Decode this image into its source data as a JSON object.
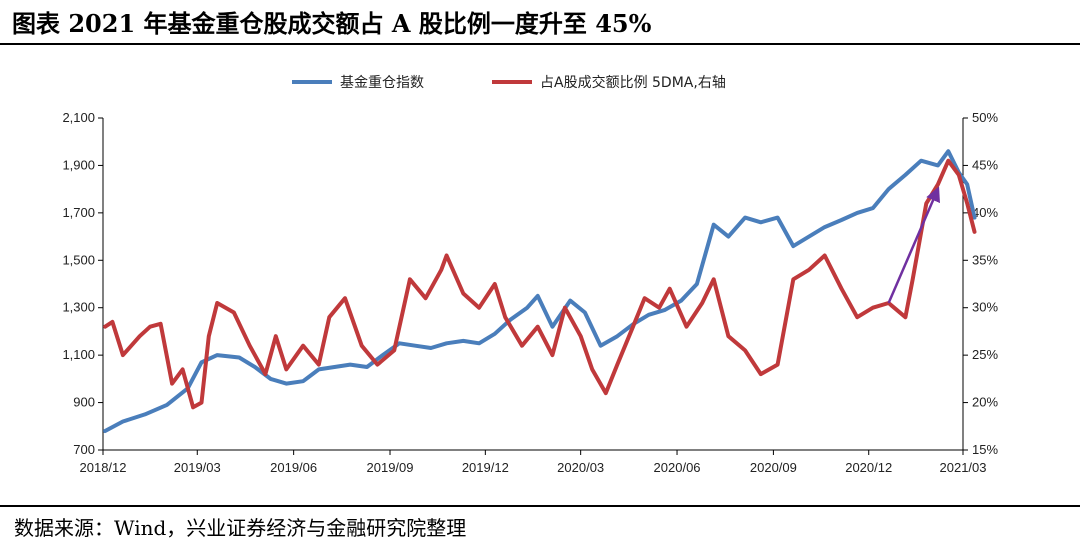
{
  "title": "图表  2021 年基金重仓股成交额占 A 股比例一度升至 45%",
  "source": "数据来源：Wind，兴业证券经济与金融研究院整理",
  "colors": {
    "fund_index": "#4a7ebb",
    "share_ratio": "#c0393b",
    "annotation_arrow": "#7030a0"
  },
  "chart_data": {
    "type": "line",
    "x_ticks": [
      "2018/12",
      "2019/03",
      "2019/06",
      "2019/09",
      "2019/12",
      "2020/03",
      "2020/06",
      "2020/09",
      "2020/12",
      "2021/03"
    ],
    "y_left": {
      "ticks": [
        "2,100",
        "1,900",
        "1,700",
        "1,500",
        "1,300",
        "1,100",
        "900",
        "700"
      ],
      "range": [
        700,
        2100
      ]
    },
    "y_right": {
      "ticks": [
        "50%",
        "45%",
        "40%",
        "35%",
        "30%",
        "25%",
        "20%",
        "15%"
      ],
      "range": [
        15,
        50
      ]
    },
    "legend_position": "top-center",
    "series": [
      {
        "name": "基金重仓指数",
        "axis": "left",
        "points": [
          [
            "2018/12/03",
            780
          ],
          [
            "2018/12/20",
            820
          ],
          [
            "2019/01/10",
            850
          ],
          [
            "2019/01/31",
            890
          ],
          [
            "2019/02/20",
            960
          ],
          [
            "2019/03/05",
            1070
          ],
          [
            "2019/03/20",
            1100
          ],
          [
            "2019/04/10",
            1090
          ],
          [
            "2019/04/25",
            1050
          ],
          [
            "2019/05/10",
            1000
          ],
          [
            "2019/05/25",
            980
          ],
          [
            "2019/06/10",
            990
          ],
          [
            "2019/06/25",
            1040
          ],
          [
            "2019/07/10",
            1050
          ],
          [
            "2019/07/25",
            1060
          ],
          [
            "2019/08/10",
            1050
          ],
          [
            "2019/08/25",
            1100
          ],
          [
            "2019/09/10",
            1150
          ],
          [
            "2019/09/25",
            1140
          ],
          [
            "2019/10/10",
            1130
          ],
          [
            "2019/10/25",
            1150
          ],
          [
            "2019/11/10",
            1160
          ],
          [
            "2019/11/25",
            1150
          ],
          [
            "2019/12/10",
            1190
          ],
          [
            "2019/12/25",
            1250
          ],
          [
            "2020/01/10",
            1300
          ],
          [
            "2020/01/20",
            1350
          ],
          [
            "2020/02/03",
            1220
          ],
          [
            "2020/02/20",
            1330
          ],
          [
            "2020/03/05",
            1280
          ],
          [
            "2020/03/20",
            1140
          ],
          [
            "2020/04/05",
            1180
          ],
          [
            "2020/04/20",
            1230
          ],
          [
            "2020/05/05",
            1270
          ],
          [
            "2020/05/20",
            1290
          ],
          [
            "2020/06/05",
            1330
          ],
          [
            "2020/06/20",
            1400
          ],
          [
            "2020/07/06",
            1650
          ],
          [
            "2020/07/20",
            1600
          ],
          [
            "2020/08/05",
            1680
          ],
          [
            "2020/08/20",
            1660
          ],
          [
            "2020/09/05",
            1680
          ],
          [
            "2020/09/20",
            1560
          ],
          [
            "2020/10/05",
            1600
          ],
          [
            "2020/10/20",
            1640
          ],
          [
            "2020/11/05",
            1670
          ],
          [
            "2020/11/20",
            1700
          ],
          [
            "2020/12/05",
            1720
          ],
          [
            "2020/12/20",
            1800
          ],
          [
            "2021/01/05",
            1860
          ],
          [
            "2021/01/20",
            1920
          ],
          [
            "2021/02/05",
            1900
          ],
          [
            "2021/02/15",
            1960
          ],
          [
            "2021/02/25",
            1870
          ],
          [
            "2021/03/05",
            1820
          ],
          [
            "2021/03/12",
            1680
          ]
        ]
      },
      {
        "name": "占A股成交额比例 5DMA,右轴",
        "axis": "right",
        "points": [
          [
            "2018/12/03",
            28
          ],
          [
            "2018/12/10",
            28.5
          ],
          [
            "2018/12/20",
            25
          ],
          [
            "2019/01/05",
            27
          ],
          [
            "2019/01/15",
            28
          ],
          [
            "2019/01/25",
            28.3
          ],
          [
            "2019/02/05",
            22
          ],
          [
            "2019/02/15",
            23.5
          ],
          [
            "2019/02/25",
            19.5
          ],
          [
            "2019/03/05",
            20
          ],
          [
            "2019/03/12",
            27
          ],
          [
            "2019/03/20",
            30.5
          ],
          [
            "2019/04/05",
            29.5
          ],
          [
            "2019/04/20",
            26
          ],
          [
            "2019/05/05",
            23
          ],
          [
            "2019/05/15",
            27
          ],
          [
            "2019/05/25",
            23.5
          ],
          [
            "2019/06/10",
            26
          ],
          [
            "2019/06/25",
            24
          ],
          [
            "2019/07/05",
            29
          ],
          [
            "2019/07/20",
            31
          ],
          [
            "2019/08/05",
            26
          ],
          [
            "2019/08/20",
            24
          ],
          [
            "2019/09/05",
            25.5
          ],
          [
            "2019/09/20",
            33
          ],
          [
            "2019/10/05",
            31
          ],
          [
            "2019/10/20",
            34
          ],
          [
            "2019/10/25",
            35.5
          ],
          [
            "2019/11/10",
            31.5
          ],
          [
            "2019/11/25",
            30
          ],
          [
            "2019/12/10",
            32.5
          ],
          [
            "2019/12/20",
            29
          ],
          [
            "2020/01/05",
            26
          ],
          [
            "2020/01/20",
            28
          ],
          [
            "2020/02/03",
            25
          ],
          [
            "2020/02/15",
            30
          ],
          [
            "2020/03/01",
            27
          ],
          [
            "2020/03/12",
            23.5
          ],
          [
            "2020/03/25",
            21
          ],
          [
            "2020/04/05",
            24
          ],
          [
            "2020/04/20",
            28
          ],
          [
            "2020/05/01",
            31
          ],
          [
            "2020/05/15",
            30
          ],
          [
            "2020/05/25",
            32
          ],
          [
            "2020/06/10",
            28
          ],
          [
            "2020/06/25",
            30.5
          ],
          [
            "2020/07/06",
            33
          ],
          [
            "2020/07/20",
            27
          ],
          [
            "2020/08/05",
            25.5
          ],
          [
            "2020/08/20",
            23
          ],
          [
            "2020/09/05",
            24
          ],
          [
            "2020/09/20",
            33
          ],
          [
            "2020/10/05",
            34
          ],
          [
            "2020/10/20",
            35.5
          ],
          [
            "2020/11/05",
            32
          ],
          [
            "2020/11/20",
            29
          ],
          [
            "2020/12/05",
            30
          ],
          [
            "2020/12/20",
            30.5
          ],
          [
            "2021/01/05",
            29
          ],
          [
            "2021/01/12",
            33
          ],
          [
            "2021/01/25",
            41
          ],
          [
            "2021/02/05",
            43
          ],
          [
            "2021/02/15",
            45.5
          ],
          [
            "2021/02/25",
            44
          ],
          [
            "2021/03/05",
            41
          ],
          [
            "2021/03/12",
            38
          ]
        ]
      }
    ],
    "annotation": {
      "type": "arrow",
      "from": [
        "2020/12/20",
        30.5
      ],
      "to": [
        "2021/02/05",
        42.5
      ],
      "axis": "right"
    }
  }
}
